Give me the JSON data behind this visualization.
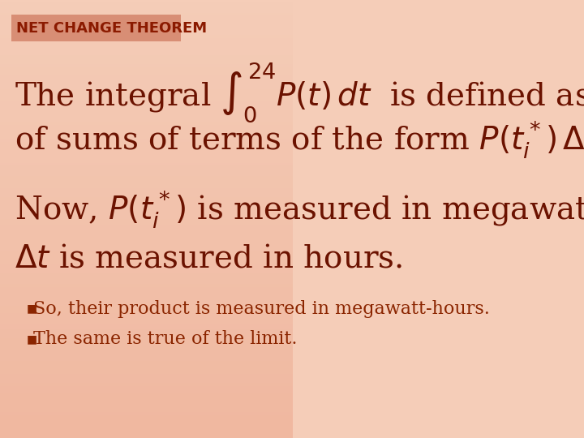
{
  "title": "NET CHANGE THEOREM",
  "title_color": "#8B1A00",
  "title_bg_color": "#D4846A",
  "bg_color_top": "#F5CDB8",
  "bg_color_bottom": "#F0B8A0",
  "text_color": "#6B1200",
  "bullet_color": "#8B2500",
  "line1_text_before": "The integral ",
  "line1_integral": "\\int_0^{24} P(t)\\,dt",
  "line1_text_after": " is defined as the limit",
  "line2_text": "of sums of terms of the form ",
  "line2_formula": "P(t_i^*)\\,\\Delta t.",
  "para2_line1_before": "Now, ",
  "para2_line1_formula": "P(t_i^*)",
  "para2_line1_after": " is measured in megawatts and",
  "para2_line2_formula": "\\Delta t",
  "para2_line2_after": " is measured in hours.",
  "bullet1": "So, their product is measured in megawatt-hours.",
  "bullet2": "The same is true of the limit.",
  "main_fontsize": 28,
  "formula_fontsize": 28,
  "bullet_fontsize": 16,
  "title_fontsize": 13
}
